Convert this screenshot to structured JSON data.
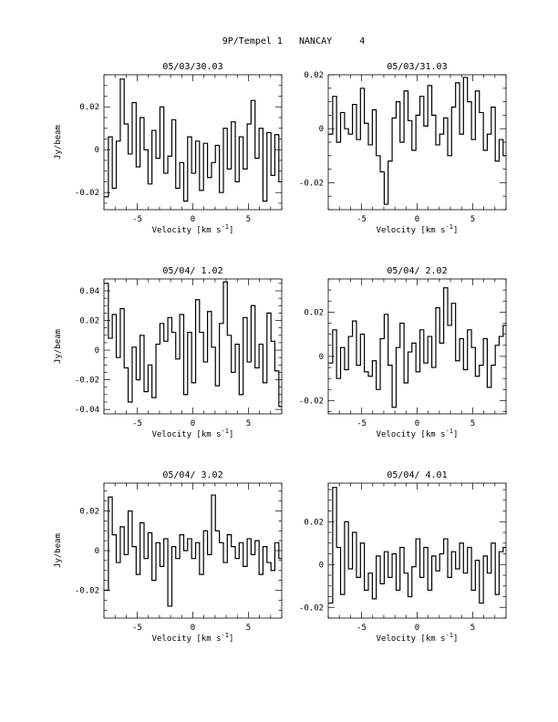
{
  "title": "9P/Tempel 1   NANCAY     4",
  "chart_data": [
    {
      "type": "line",
      "step": true,
      "title": "05/03/30.03",
      "xlabel": "Velocity [km s",
      "xlabel_sup": "-1",
      "xlabel_end": "]",
      "ylabel": "Jy/beam",
      "xlim": [
        -8,
        8
      ],
      "ylim": [
        -0.028,
        0.035
      ],
      "xticks": [
        -5,
        0,
        5
      ],
      "yticks": [
        -0.02,
        0,
        0.02
      ],
      "ytick_labels": [
        "-0.02",
        "0",
        "0.02"
      ],
      "x": [
        -7.96,
        -7.6,
        -7.25,
        -6.89,
        -6.53,
        -6.18,
        -5.82,
        -5.46,
        -5.1,
        -4.75,
        -4.39,
        -4.03,
        -3.68,
        -3.32,
        -2.96,
        -2.61,
        -2.25,
        -1.89,
        -1.54,
        -1.18,
        -0.82,
        -0.47,
        -0.11,
        0.25,
        0.6,
        0.96,
        1.32,
        1.68,
        2.03,
        2.39,
        2.75,
        3.1,
        3.46,
        3.82,
        4.17,
        4.53,
        4.89,
        5.24,
        5.6,
        5.96,
        6.31,
        6.67,
        7.03,
        7.38,
        7.74
      ],
      "y": [
        -0.022,
        0.006,
        -0.018,
        0.004,
        0.033,
        0.012,
        -0.002,
        0.022,
        -0.008,
        0.015,
        0.0,
        -0.016,
        0.009,
        -0.004,
        0.02,
        -0.011,
        -0.003,
        0.014,
        -0.018,
        -0.006,
        -0.024,
        0.006,
        -0.011,
        0.004,
        -0.019,
        0.003,
        -0.013,
        -0.006,
        0.002,
        -0.02,
        0.01,
        -0.009,
        0.013,
        -0.015,
        0.006,
        -0.009,
        0.012,
        0.023,
        -0.004,
        0.01,
        -0.024,
        0.008,
        -0.012,
        0.007,
        -0.015
      ]
    },
    {
      "type": "line",
      "step": true,
      "title": "05/03/31.03",
      "xlabel": "Velocity [km s",
      "xlabel_sup": "-1",
      "xlabel_end": "]",
      "ylabel": "",
      "xlim": [
        -8,
        8
      ],
      "ylim": [
        -0.03,
        0.02
      ],
      "xticks": [
        -5,
        0,
        5
      ],
      "yticks": [
        -0.02,
        0,
        0.02
      ],
      "ytick_labels": [
        "-0.02",
        "0",
        "0.02"
      ],
      "x": [
        -7.96,
        -7.6,
        -7.25,
        -6.89,
        -6.53,
        -6.18,
        -5.82,
        -5.46,
        -5.1,
        -4.75,
        -4.39,
        -4.03,
        -3.68,
        -3.32,
        -2.96,
        -2.61,
        -2.25,
        -1.89,
        -1.54,
        -1.18,
        -0.82,
        -0.47,
        -0.11,
        0.25,
        0.6,
        0.96,
        1.32,
        1.68,
        2.03,
        2.39,
        2.75,
        3.1,
        3.46,
        3.82,
        4.17,
        4.53,
        4.89,
        5.24,
        5.6,
        5.96,
        6.31,
        6.67,
        7.03,
        7.38,
        7.74
      ],
      "y": [
        -0.002,
        0.012,
        -0.005,
        0.006,
        0.0,
        -0.002,
        0.009,
        -0.004,
        0.015,
        0.002,
        -0.006,
        0.007,
        -0.01,
        -0.016,
        -0.028,
        -0.012,
        0.004,
        0.01,
        -0.005,
        0.014,
        0.003,
        -0.008,
        0.005,
        0.012,
        0.001,
        0.016,
        0.005,
        -0.006,
        -0.002,
        0.004,
        -0.01,
        0.008,
        0.017,
        -0.002,
        0.019,
        0.01,
        -0.004,
        0.014,
        0.006,
        -0.008,
        -0.002,
        0.008,
        -0.012,
        -0.004,
        -0.01
      ]
    },
    {
      "type": "line",
      "step": true,
      "title": "05/04/ 1.02",
      "xlabel": "Velocity [km s",
      "xlabel_sup": "-1",
      "xlabel_end": "]",
      "ylabel": "Jy/beam",
      "xlim": [
        -8,
        8
      ],
      "ylim": [
        -0.043,
        0.048
      ],
      "xticks": [
        -5,
        0,
        5
      ],
      "yticks": [
        -0.04,
        -0.02,
        0,
        0.02,
        0.04
      ],
      "ytick_labels": [
        "-0.04",
        "-0.02",
        "0",
        "0.02",
        "0.04"
      ],
      "x": [
        -7.96,
        -7.6,
        -7.25,
        -6.89,
        -6.53,
        -6.18,
        -5.82,
        -5.46,
        -5.1,
        -4.75,
        -4.39,
        -4.03,
        -3.68,
        -3.32,
        -2.96,
        -2.61,
        -2.25,
        -1.89,
        -1.54,
        -1.18,
        -0.82,
        -0.47,
        -0.11,
        0.25,
        0.6,
        0.96,
        1.32,
        1.68,
        2.03,
        2.39,
        2.75,
        3.1,
        3.46,
        3.82,
        4.17,
        4.53,
        4.89,
        5.24,
        5.6,
        5.96,
        6.31,
        6.67,
        7.03,
        7.38,
        7.74
      ],
      "y": [
        0.045,
        0.008,
        0.024,
        -0.005,
        0.028,
        -0.012,
        -0.035,
        0.002,
        -0.02,
        0.01,
        -0.028,
        -0.01,
        -0.032,
        0.004,
        0.018,
        0.006,
        0.022,
        0.012,
        -0.006,
        0.024,
        -0.03,
        0.012,
        -0.022,
        0.034,
        0.012,
        -0.008,
        0.026,
        0.002,
        -0.024,
        0.018,
        0.046,
        0.01,
        -0.015,
        0.004,
        -0.03,
        0.022,
        -0.008,
        0.03,
        -0.012,
        0.004,
        -0.022,
        0.025,
        0.006,
        -0.014,
        -0.038
      ]
    },
    {
      "type": "line",
      "step": true,
      "title": "05/04/ 2.02",
      "xlabel": "Velocity [km s",
      "xlabel_sup": "-1",
      "xlabel_end": "]",
      "ylabel": "",
      "xlim": [
        -8,
        8
      ],
      "ylim": [
        -0.026,
        0.035
      ],
      "xticks": [
        -5,
        0,
        5
      ],
      "yticks": [
        -0.02,
        0,
        0.02
      ],
      "ytick_labels": [
        "-0.02",
        "0",
        "0.02"
      ],
      "x": [
        -7.96,
        -7.6,
        -7.25,
        -6.89,
        -6.53,
        -6.18,
        -5.82,
        -5.46,
        -5.1,
        -4.75,
        -4.39,
        -4.03,
        -3.68,
        -3.32,
        -2.96,
        -2.61,
        -2.25,
        -1.89,
        -1.54,
        -1.18,
        -0.82,
        -0.47,
        -0.11,
        0.25,
        0.6,
        0.96,
        1.32,
        1.68,
        2.03,
        2.39,
        2.75,
        3.1,
        3.46,
        3.82,
        4.17,
        4.53,
        4.89,
        5.24,
        5.6,
        5.96,
        6.31,
        6.67,
        7.03,
        7.38,
        7.74
      ],
      "y": [
        -0.003,
        0.012,
        -0.01,
        0.004,
        -0.006,
        0.009,
        0.016,
        -0.004,
        0.01,
        -0.007,
        -0.009,
        -0.002,
        -0.015,
        0.008,
        0.019,
        -0.004,
        -0.023,
        0.004,
        0.015,
        -0.012,
        0.002,
        0.006,
        -0.007,
        0.012,
        -0.003,
        0.009,
        -0.005,
        0.022,
        0.006,
        0.031,
        0.014,
        0.024,
        -0.002,
        0.008,
        -0.006,
        0.012,
        0.004,
        -0.009,
        -0.004,
        0.008,
        -0.014,
        -0.004,
        0.005,
        0.009,
        0.014
      ]
    },
    {
      "type": "line",
      "step": true,
      "title": "05/04/ 3.02",
      "xlabel": "Velocity [km s",
      "xlabel_sup": "-1",
      "xlabel_end": "]",
      "ylabel": "Jy/beam",
      "xlim": [
        -8,
        8
      ],
      "ylim": [
        -0.034,
        0.034
      ],
      "xticks": [
        -5,
        0,
        5
      ],
      "yticks": [
        -0.02,
        0,
        0.02
      ],
      "ytick_labels": [
        "-0.02",
        "0",
        "0.02"
      ],
      "x": [
        -7.96,
        -7.6,
        -7.25,
        -6.89,
        -6.53,
        -6.18,
        -5.82,
        -5.46,
        -5.1,
        -4.75,
        -4.39,
        -4.03,
        -3.68,
        -3.32,
        -2.96,
        -2.61,
        -2.25,
        -1.89,
        -1.54,
        -1.18,
        -0.82,
        -0.47,
        -0.11,
        0.25,
        0.6,
        0.96,
        1.32,
        1.68,
        2.03,
        2.39,
        2.75,
        3.1,
        3.46,
        3.82,
        4.17,
        4.53,
        4.89,
        5.24,
        5.6,
        5.96,
        6.31,
        6.67,
        7.03,
        7.38,
        7.74
      ],
      "y": [
        -0.02,
        0.027,
        0.008,
        -0.006,
        0.012,
        -0.002,
        0.02,
        0.002,
        -0.012,
        0.014,
        -0.004,
        0.009,
        -0.015,
        0.004,
        -0.008,
        0.006,
        -0.028,
        0.002,
        -0.004,
        0.008,
        0.0,
        0.006,
        -0.004,
        0.004,
        -0.012,
        0.01,
        -0.002,
        0.028,
        0.01,
        0.004,
        -0.006,
        0.008,
        0.002,
        -0.004,
        0.004,
        -0.008,
        0.006,
        -0.002,
        0.005,
        -0.012,
        0.002,
        -0.006,
        -0.01,
        0.004,
        -0.004
      ]
    },
    {
      "type": "line",
      "step": true,
      "title": "05/04/ 4.01",
      "xlabel": "Velocity [km s",
      "xlabel_sup": "-1",
      "xlabel_end": "]",
      "ylabel": "",
      "xlim": [
        -8,
        8
      ],
      "ylim": [
        -0.025,
        0.038
      ],
      "xticks": [
        -5,
        0,
        5
      ],
      "yticks": [
        -0.02,
        0,
        0.02
      ],
      "ytick_labels": [
        "-0.02",
        "0",
        "0.02"
      ],
      "x": [
        -7.96,
        -7.6,
        -7.25,
        -6.89,
        -6.53,
        -6.18,
        -5.82,
        -5.46,
        -5.1,
        -4.75,
        -4.39,
        -4.03,
        -3.68,
        -3.32,
        -2.96,
        -2.61,
        -2.25,
        -1.89,
        -1.54,
        -1.18,
        -0.82,
        -0.47,
        -0.11,
        0.25,
        0.6,
        0.96,
        1.32,
        1.68,
        2.03,
        2.39,
        2.75,
        3.1,
        3.46,
        3.82,
        4.17,
        4.53,
        4.89,
        5.24,
        5.6,
        5.96,
        6.31,
        6.67,
        7.03,
        7.38,
        7.74
      ],
      "y": [
        -0.018,
        0.036,
        0.008,
        -0.014,
        0.02,
        -0.002,
        0.015,
        -0.006,
        0.01,
        -0.012,
        -0.004,
        -0.016,
        0.004,
        -0.009,
        0.006,
        -0.006,
        0.005,
        -0.012,
        0.008,
        -0.004,
        -0.015,
        -0.001,
        0.012,
        -0.006,
        0.008,
        -0.012,
        0.004,
        -0.003,
        0.005,
        0.012,
        -0.006,
        0.006,
        -0.002,
        0.01,
        -0.004,
        0.008,
        -0.012,
        0.002,
        -0.018,
        0.004,
        -0.004,
        0.01,
        -0.014,
        0.006,
        0.008
      ]
    }
  ]
}
